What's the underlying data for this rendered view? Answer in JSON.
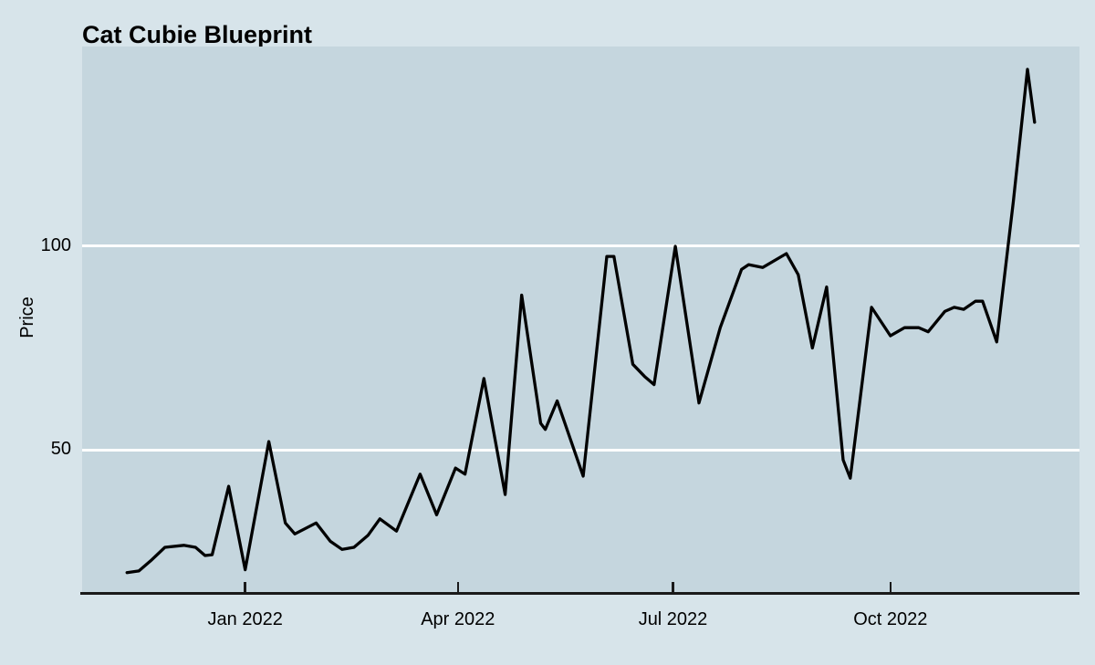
{
  "colors": {
    "outer_background": "#d7e4ea",
    "panel_background": "#c5d6de",
    "gridline": "#ffffff",
    "axis": "#1a1a1a",
    "line": "#000000",
    "text": "#000000"
  },
  "chart_data": {
    "type": "line",
    "title": "Cat Cubie Blueprint",
    "xlabel": "",
    "ylabel": "Price",
    "legend_position": "none",
    "grid": "horizontal-white",
    "x_domain": [
      "2021-10-24",
      "2022-12-20"
    ],
    "y_domain": [
      14.8,
      149.1
    ],
    "y_ticks": [
      {
        "value": 50,
        "label": "50"
      },
      {
        "value": 100,
        "label": "100"
      }
    ],
    "x_ticks": [
      {
        "date": "2022-01-01",
        "label": "Jan 2022"
      },
      {
        "date": "2022-04-01",
        "label": "Apr 2022"
      },
      {
        "date": "2022-07-01",
        "label": "Jul 2022"
      },
      {
        "date": "2022-10-01",
        "label": "Oct 2022"
      }
    ],
    "series": [
      {
        "name": "Price",
        "color": "#000000",
        "points": [
          {
            "date": "2021-11-12",
            "value": 19.8
          },
          {
            "date": "2021-11-17",
            "value": 20.2
          },
          {
            "date": "2021-11-22",
            "value": 22.7
          },
          {
            "date": "2021-11-28",
            "value": 26.0
          },
          {
            "date": "2021-12-06",
            "value": 26.5
          },
          {
            "date": "2021-12-11",
            "value": 26.0
          },
          {
            "date": "2021-12-15",
            "value": 24.0
          },
          {
            "date": "2021-12-18",
            "value": 24.2
          },
          {
            "date": "2021-12-25",
            "value": 41.0
          },
          {
            "date": "2022-01-01",
            "value": 20.5
          },
          {
            "date": "2022-01-11",
            "value": 52.0
          },
          {
            "date": "2022-01-18",
            "value": 32.0
          },
          {
            "date": "2022-01-22",
            "value": 29.3
          },
          {
            "date": "2022-01-31",
            "value": 32.0
          },
          {
            "date": "2022-02-06",
            "value": 27.5
          },
          {
            "date": "2022-02-11",
            "value": 25.5
          },
          {
            "date": "2022-02-16",
            "value": 26.0
          },
          {
            "date": "2022-02-22",
            "value": 29.0
          },
          {
            "date": "2022-02-27",
            "value": 33.0
          },
          {
            "date": "2022-03-06",
            "value": 30.0
          },
          {
            "date": "2022-03-16",
            "value": 44.0
          },
          {
            "date": "2022-03-23",
            "value": 34.0
          },
          {
            "date": "2022-03-31",
            "value": 45.5
          },
          {
            "date": "2022-04-04",
            "value": 44.0
          },
          {
            "date": "2022-04-12",
            "value": 67.5
          },
          {
            "date": "2022-04-21",
            "value": 39.0
          },
          {
            "date": "2022-04-28",
            "value": 88.0
          },
          {
            "date": "2022-05-06",
            "value": 56.5
          },
          {
            "date": "2022-05-08",
            "value": 55.0
          },
          {
            "date": "2022-05-13",
            "value": 62.0
          },
          {
            "date": "2022-05-24",
            "value": 43.5
          },
          {
            "date": "2022-06-03",
            "value": 97.5
          },
          {
            "date": "2022-06-06",
            "value": 97.5
          },
          {
            "date": "2022-06-14",
            "value": 71.0
          },
          {
            "date": "2022-06-19",
            "value": 68.0
          },
          {
            "date": "2022-06-23",
            "value": 66.0
          },
          {
            "date": "2022-07-02",
            "value": 100.0
          },
          {
            "date": "2022-07-12",
            "value": 61.5
          },
          {
            "date": "2022-07-21",
            "value": 80.0
          },
          {
            "date": "2022-07-30",
            "value": 94.3
          },
          {
            "date": "2022-08-02",
            "value": 95.5
          },
          {
            "date": "2022-08-08",
            "value": 94.8
          },
          {
            "date": "2022-08-18",
            "value": 98.2
          },
          {
            "date": "2022-08-23",
            "value": 93.0
          },
          {
            "date": "2022-08-29",
            "value": 75.0
          },
          {
            "date": "2022-09-04",
            "value": 90.0
          },
          {
            "date": "2022-09-11",
            "value": 47.5
          },
          {
            "date": "2022-09-14",
            "value": 43.0
          },
          {
            "date": "2022-09-23",
            "value": 85.0
          },
          {
            "date": "2022-10-01",
            "value": 78.0
          },
          {
            "date": "2022-10-07",
            "value": 80.0
          },
          {
            "date": "2022-10-13",
            "value": 80.0
          },
          {
            "date": "2022-10-17",
            "value": 79.0
          },
          {
            "date": "2022-10-24",
            "value": 84.0
          },
          {
            "date": "2022-10-28",
            "value": 85.0
          },
          {
            "date": "2022-11-01",
            "value": 84.5
          },
          {
            "date": "2022-11-06",
            "value": 86.5
          },
          {
            "date": "2022-11-09",
            "value": 86.5
          },
          {
            "date": "2022-11-15",
            "value": 76.5
          },
          {
            "date": "2022-11-22",
            "value": 111.0
          },
          {
            "date": "2022-11-28",
            "value": 143.5
          },
          {
            "date": "2022-12-01",
            "value": 130.5
          }
        ]
      }
    ]
  }
}
